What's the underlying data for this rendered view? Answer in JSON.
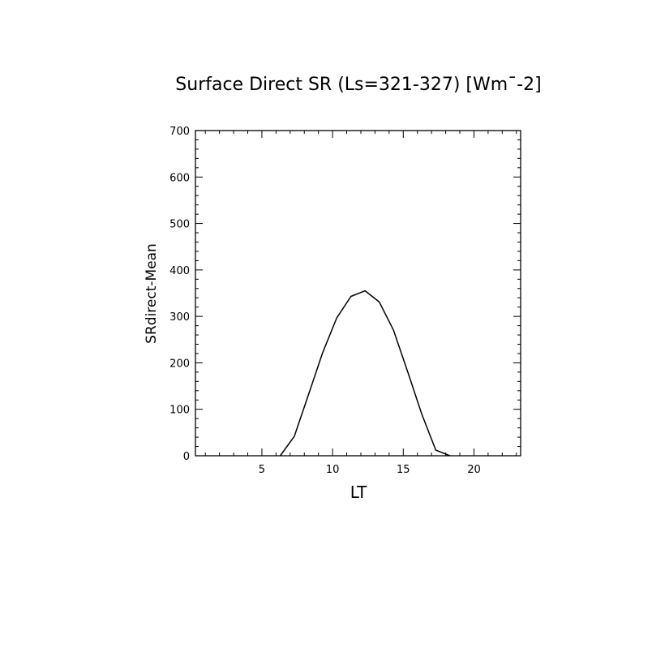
{
  "chart_data": {
    "type": "line",
    "title": "Surface Direct SR (Ls=321-327) [Wm¯-2]",
    "xlabel": "LT",
    "ylabel": "SRdirect-Mean",
    "xlim": [
      0.3,
      23.3
    ],
    "ylim": [
      0,
      700
    ],
    "xticks": [
      5,
      10,
      15,
      20
    ],
    "yticks": [
      0,
      100,
      200,
      300,
      400,
      500,
      600,
      700
    ],
    "grid": false,
    "series": [
      {
        "x": [
          6.3,
          7.3,
          8.3,
          9.3,
          10.3,
          11.3,
          12.3,
          13.3,
          14.3,
          15.3,
          16.3,
          17.3,
          18.3
        ],
        "values": [
          0,
          42,
          132,
          222,
          297,
          343,
          355,
          331,
          271,
          182,
          90,
          12,
          0
        ]
      }
    ]
  }
}
